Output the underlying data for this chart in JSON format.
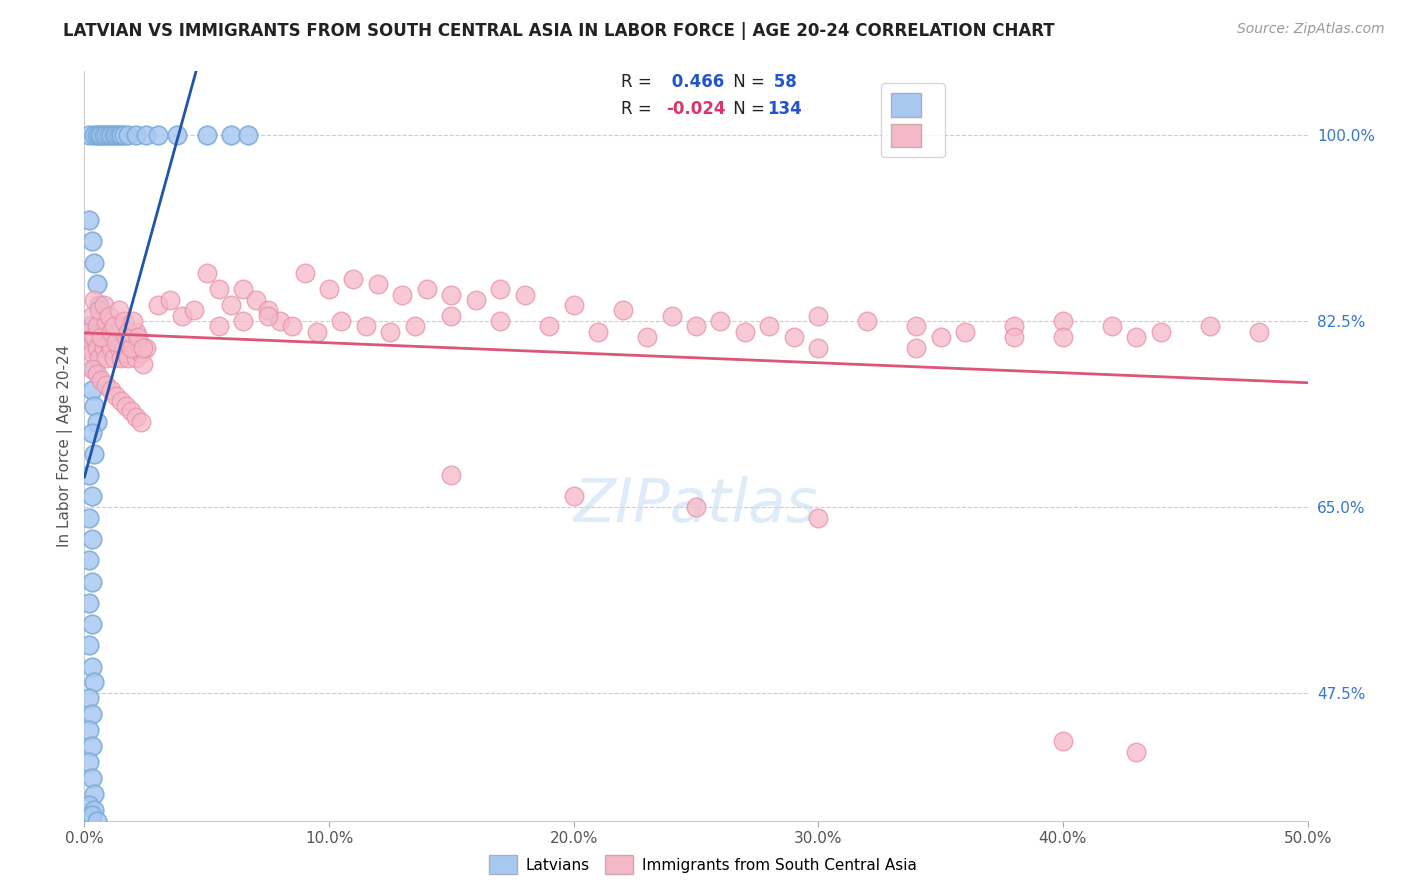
{
  "title": "LATVIAN VS IMMIGRANTS FROM SOUTH CENTRAL ASIA IN LABOR FORCE | AGE 20-24 CORRELATION CHART",
  "source": "Source: ZipAtlas.com",
  "ylabel": "In Labor Force | Age 20-24",
  "xlim": [
    0.0,
    0.5
  ],
  "ylim": [
    0.355,
    1.06
  ],
  "yticks": [
    0.475,
    0.65,
    0.825,
    1.0
  ],
  "ytick_labels": [
    "47.5%",
    "65.0%",
    "82.5%",
    "100.0%"
  ],
  "xticks": [
    0.0,
    0.1,
    0.2,
    0.3,
    0.4,
    0.5
  ],
  "xtick_labels": [
    "0.0%",
    "10.0%",
    "20.0%",
    "30.0%",
    "40.0%",
    "50.0%"
  ],
  "blue_R": 0.466,
  "blue_N": 58,
  "pink_R": -0.024,
  "pink_N": 134,
  "blue_color": "#a8c8f0",
  "pink_color": "#f5b8c8",
  "blue_edge_color": "#7aaad8",
  "pink_edge_color": "#e890a8",
  "blue_line_color": "#2255aa",
  "pink_line_color": "#dd5577",
  "legend_latvians": "Latvians",
  "legend_immigrants": "Immigrants from South Central Asia",
  "watermark": "ZIPatlas",
  "title_fontsize": 12,
  "source_fontsize": 10,
  "blue_scatter_x": [
    0.002,
    0.004,
    0.005,
    0.006,
    0.007,
    0.008,
    0.009,
    0.01,
    0.011,
    0.012,
    0.013,
    0.014,
    0.015,
    0.016,
    0.018,
    0.021,
    0.025,
    0.03,
    0.038,
    0.05,
    0.06,
    0.067,
    0.002,
    0.003,
    0.004,
    0.005,
    0.006,
    0.002,
    0.003,
    0.004,
    0.003,
    0.004,
    0.005,
    0.003,
    0.004,
    0.002,
    0.003,
    0.002,
    0.003,
    0.002,
    0.003,
    0.002,
    0.003,
    0.002,
    0.003,
    0.004,
    0.002,
    0.003,
    0.002,
    0.003,
    0.002,
    0.003,
    0.004,
    0.002,
    0.004,
    0.003,
    0.005
  ],
  "blue_scatter_y": [
    1.0,
    1.0,
    1.0,
    1.0,
    1.0,
    1.0,
    1.0,
    1.0,
    1.0,
    1.0,
    1.0,
    1.0,
    1.0,
    1.0,
    1.0,
    1.0,
    1.0,
    1.0,
    1.0,
    1.0,
    1.0,
    1.0,
    0.92,
    0.9,
    0.88,
    0.86,
    0.84,
    0.82,
    0.8,
    0.78,
    0.76,
    0.745,
    0.73,
    0.72,
    0.7,
    0.68,
    0.66,
    0.64,
    0.62,
    0.6,
    0.58,
    0.56,
    0.54,
    0.52,
    0.5,
    0.485,
    0.47,
    0.455,
    0.44,
    0.425,
    0.41,
    0.395,
    0.38,
    0.37,
    0.365,
    0.36,
    0.355
  ],
  "pink_scatter_x": [
    0.001,
    0.002,
    0.003,
    0.004,
    0.005,
    0.006,
    0.007,
    0.008,
    0.009,
    0.01,
    0.011,
    0.012,
    0.013,
    0.014,
    0.015,
    0.016,
    0.017,
    0.018,
    0.019,
    0.02,
    0.021,
    0.022,
    0.023,
    0.024,
    0.025,
    0.003,
    0.005,
    0.007,
    0.009,
    0.011,
    0.013,
    0.015,
    0.017,
    0.019,
    0.021,
    0.004,
    0.006,
    0.008,
    0.01,
    0.012,
    0.014,
    0.016,
    0.018,
    0.02,
    0.022,
    0.024,
    0.003,
    0.005,
    0.007,
    0.009,
    0.011,
    0.013,
    0.015,
    0.017,
    0.019,
    0.021,
    0.023,
    0.03,
    0.035,
    0.04,
    0.045,
    0.05,
    0.055,
    0.06,
    0.065,
    0.07,
    0.075,
    0.08,
    0.055,
    0.065,
    0.075,
    0.085,
    0.095,
    0.105,
    0.115,
    0.125,
    0.135,
    0.09,
    0.1,
    0.11,
    0.12,
    0.13,
    0.14,
    0.15,
    0.16,
    0.17,
    0.18,
    0.15,
    0.17,
    0.19,
    0.21,
    0.23,
    0.25,
    0.27,
    0.29,
    0.2,
    0.22,
    0.24,
    0.26,
    0.28,
    0.3,
    0.32,
    0.34,
    0.36,
    0.38,
    0.4,
    0.42,
    0.44,
    0.46,
    0.48,
    0.35,
    0.38,
    0.4,
    0.43,
    0.3,
    0.34,
    0.15,
    0.2,
    0.25,
    0.3,
    0.4,
    0.43
  ],
  "pink_scatter_y": [
    0.8,
    0.815,
    0.795,
    0.81,
    0.8,
    0.79,
    0.815,
    0.8,
    0.79,
    0.805,
    0.8,
    0.79,
    0.81,
    0.8,
    0.79,
    0.8,
    0.795,
    0.79,
    0.81,
    0.8,
    0.79,
    0.805,
    0.795,
    0.785,
    0.8,
    0.83,
    0.82,
    0.81,
    0.825,
    0.815,
    0.805,
    0.82,
    0.81,
    0.8,
    0.815,
    0.845,
    0.835,
    0.84,
    0.83,
    0.82,
    0.835,
    0.825,
    0.815,
    0.825,
    0.81,
    0.8,
    0.78,
    0.775,
    0.77,
    0.765,
    0.76,
    0.755,
    0.75,
    0.745,
    0.74,
    0.735,
    0.73,
    0.84,
    0.845,
    0.83,
    0.835,
    0.87,
    0.855,
    0.84,
    0.855,
    0.845,
    0.835,
    0.825,
    0.82,
    0.825,
    0.83,
    0.82,
    0.815,
    0.825,
    0.82,
    0.815,
    0.82,
    0.87,
    0.855,
    0.865,
    0.86,
    0.85,
    0.855,
    0.85,
    0.845,
    0.855,
    0.85,
    0.83,
    0.825,
    0.82,
    0.815,
    0.81,
    0.82,
    0.815,
    0.81,
    0.84,
    0.835,
    0.83,
    0.825,
    0.82,
    0.83,
    0.825,
    0.82,
    0.815,
    0.82,
    0.825,
    0.82,
    0.815,
    0.82,
    0.815,
    0.81,
    0.81,
    0.81,
    0.81,
    0.8,
    0.8,
    0.68,
    0.66,
    0.65,
    0.64,
    0.43,
    0.42
  ]
}
